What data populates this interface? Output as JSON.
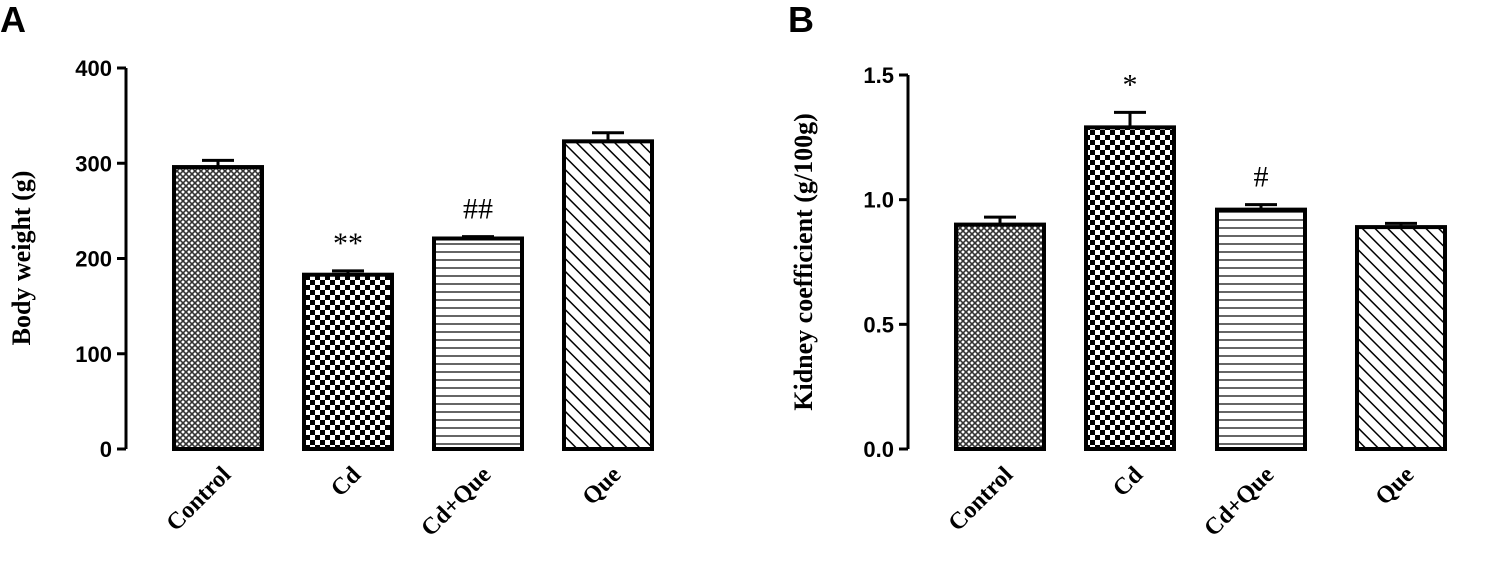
{
  "chart_data": [
    {
      "panel": "A",
      "type": "bar",
      "categories": [
        "Control",
        "Cd",
        "Cd+Que",
        "Que"
      ],
      "values": [
        296,
        183,
        221,
        323
      ],
      "errors": [
        7,
        4,
        2,
        9
      ],
      "annotations": [
        "",
        "**",
        "##",
        ""
      ],
      "patterns": [
        "crosshatch",
        "checker",
        "hlines",
        "diagonal"
      ],
      "ylabel": "Body weight (g)",
      "ylim": [
        0,
        400
      ],
      "yticks": [
        "0",
        "100",
        "200",
        "300",
        "400"
      ],
      "ytick_values": [
        0,
        100,
        200,
        300,
        400
      ]
    },
    {
      "panel": "B",
      "type": "bar",
      "categories": [
        "Control",
        "Cd",
        "Cd+Que",
        "Que"
      ],
      "values": [
        0.9,
        1.29,
        0.96,
        0.89
      ],
      "errors": [
        0.03,
        0.06,
        0.02,
        0.015
      ],
      "annotations": [
        "",
        "*",
        "#",
        ""
      ],
      "patterns": [
        "crosshatch",
        "checker",
        "hlines",
        "diagonal"
      ],
      "ylabel": "Kidney coefficient (g/100g)",
      "ylim": [
        0,
        1.5
      ],
      "yticks": [
        "0.0",
        "0.5",
        "1.0",
        "1.5"
      ],
      "ytick_values": [
        0,
        0.5,
        1.0,
        1.5
      ]
    }
  ]
}
